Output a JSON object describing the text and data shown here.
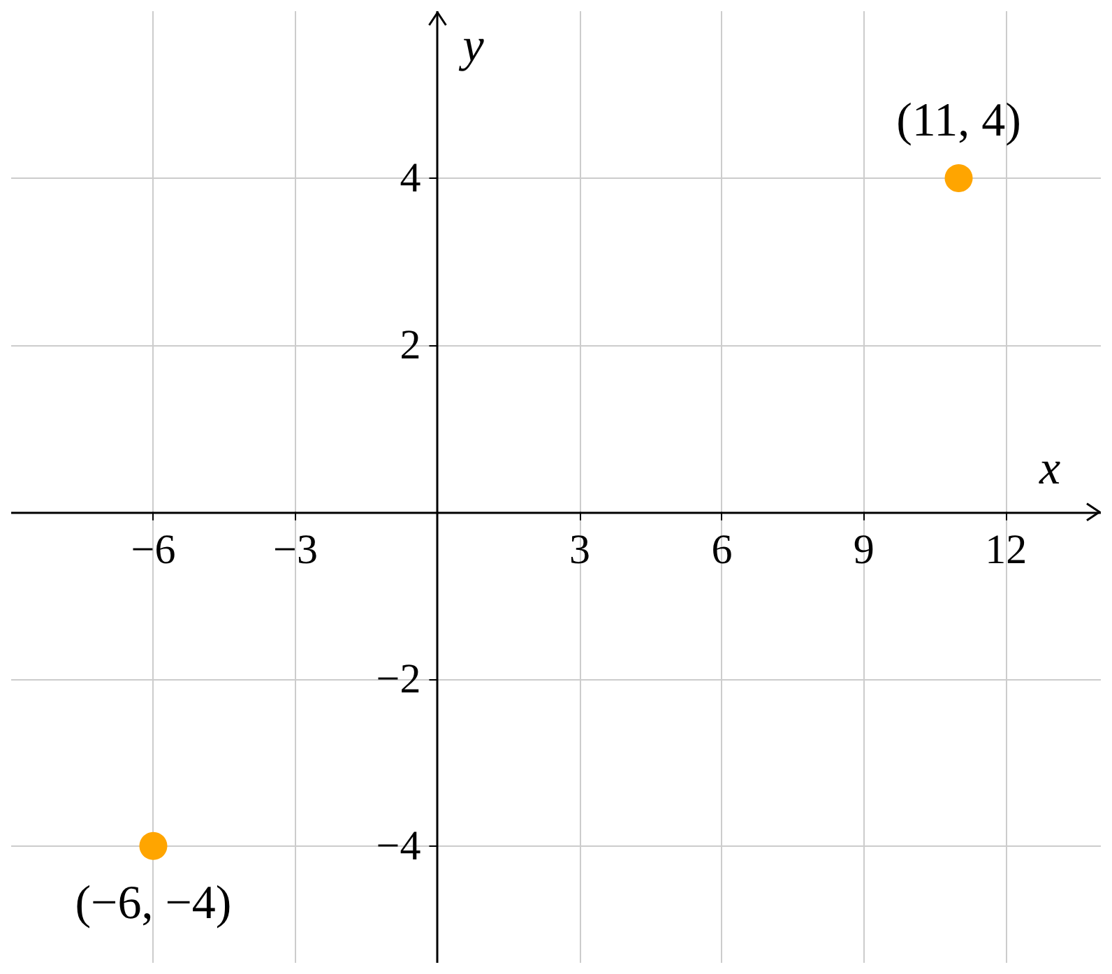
{
  "chart_data": {
    "type": "scatter",
    "xlabel": "x",
    "ylabel": "y",
    "x": [
      -6,
      11
    ],
    "series": [
      {
        "color": "#ffa500",
        "values": [
          -4,
          4
        ]
      }
    ],
    "xlim": [
      -9,
      14
    ],
    "ylim": [
      -5.4,
      6
    ],
    "xticks": [
      {
        "value": -6,
        "label": "−6"
      },
      {
        "value": -3,
        "label": "−3"
      },
      3,
      6,
      9,
      12
    ],
    "yticks": [
      {
        "value": -4,
        "label": "−4"
      },
      {
        "value": -2,
        "label": "−2"
      },
      2,
      4
    ],
    "grid": true,
    "marker": "circle",
    "annotations": [
      {
        "text": "(11, 4)",
        "x": 11,
        "y": 4
      },
      {
        "text": "(−6, −4)",
        "x": -6,
        "y": -4
      }
    ]
  }
}
